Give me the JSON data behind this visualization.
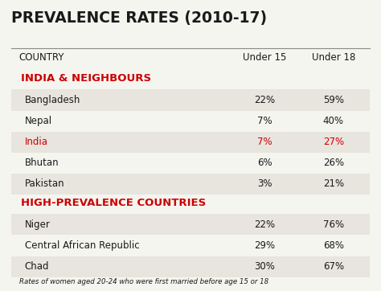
{
  "title": "PREVALENCE RATES (2010-17)",
  "col_header": "COUNTRY",
  "col1_header": "Under 15",
  "col2_header": "Under 18",
  "section1_label": "INDIA & NEIGHBOURS",
  "section2_label": "HIGH-PREVALENCE COUNTRIES",
  "footnote": "Rates of women aged 20-24 who were first married before age 15 or 18",
  "rows": [
    {
      "country": "Bangladesh",
      "under15": "22%",
      "under18": "59%",
      "red": false,
      "shaded": true
    },
    {
      "country": "Nepal",
      "under15": "7%",
      "under18": "40%",
      "red": false,
      "shaded": false
    },
    {
      "country": "India",
      "under15": "7%",
      "under18": "27%",
      "red": true,
      "shaded": true
    },
    {
      "country": "Bhutan",
      "under15": "6%",
      "under18": "26%",
      "red": false,
      "shaded": false
    },
    {
      "country": "Pakistan",
      "under15": "3%",
      "under18": "21%",
      "red": false,
      "shaded": true
    },
    {
      "country": "Niger",
      "under15": "22%",
      "under18": "76%",
      "red": false,
      "shaded": true
    },
    {
      "country": "Central African Republic",
      "under15": "29%",
      "under18": "68%",
      "red": false,
      "shaded": false
    },
    {
      "country": "Chad",
      "under15": "30%",
      "under18": "67%",
      "red": false,
      "shaded": true
    }
  ],
  "bg_color": "#f5f5f0",
  "shaded_color": "#e8e4de",
  "red_color": "#cc0000",
  "black_color": "#1a1a1a",
  "title_color": "#1a1a1a"
}
